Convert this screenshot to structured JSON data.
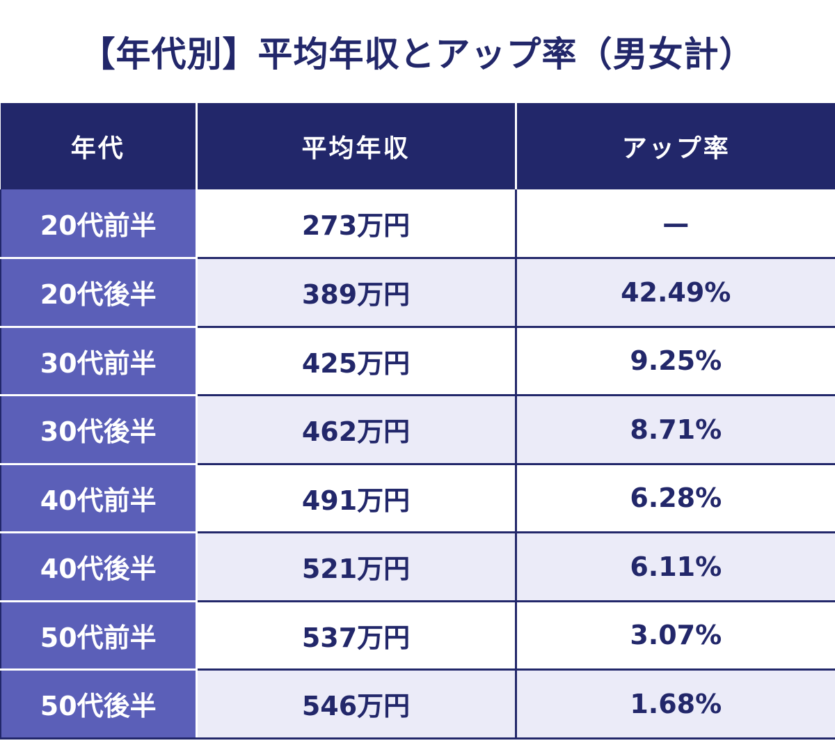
{
  "title": "【年代別】平均年収とアップ率（男女計）",
  "colors": {
    "header_bg": "#22276a",
    "age_col_bg": "#5b5fb8",
    "stripe_bg": "#ebebf8",
    "text": "#22276a"
  },
  "chart_data": {
    "type": "table",
    "title": "【年代別】平均年収とアップ率（男女計）",
    "columns": [
      "年代",
      "平均年収",
      "アップ率"
    ],
    "rows": [
      {
        "age": "20代前半",
        "income": "273万円",
        "rate": "—"
      },
      {
        "age": "20代後半",
        "income": "389万円",
        "rate": "42.49%"
      },
      {
        "age": "30代前半",
        "income": "425万円",
        "rate": "9.25%"
      },
      {
        "age": "30代後半",
        "income": "462万円",
        "rate": "8.71%"
      },
      {
        "age": "40代前半",
        "income": "491万円",
        "rate": "6.28%"
      },
      {
        "age": "40代後半",
        "income": "521万円",
        "rate": "6.11%"
      },
      {
        "age": "50代前半",
        "income": "537万円",
        "rate": "3.07%"
      },
      {
        "age": "50代後半",
        "income": "546万円",
        "rate": "1.68%"
      }
    ]
  }
}
